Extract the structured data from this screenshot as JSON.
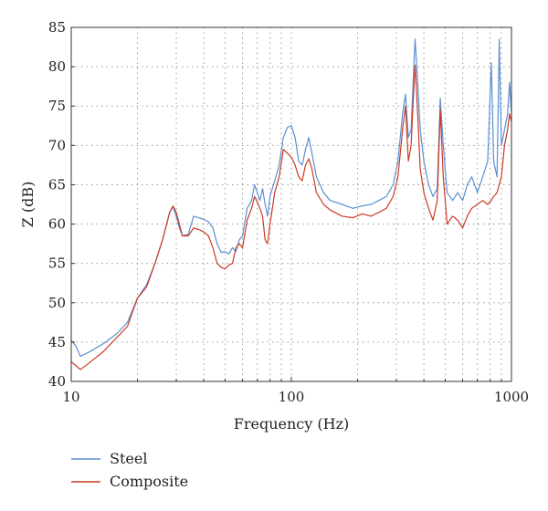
{
  "chart_data": {
    "type": "line",
    "title": "",
    "xlabel": "Frequency (Hz)",
    "ylabel": "Z (dB)",
    "xscale": "log",
    "xlim": [
      10,
      1000
    ],
    "ylim": [
      40,
      85
    ],
    "x_ticks": [
      10,
      100,
      1000
    ],
    "x_tick_labels": [
      "10",
      "100",
      "1000"
    ],
    "y_ticks": [
      40,
      45,
      50,
      55,
      60,
      65,
      70,
      75,
      80,
      85
    ],
    "y_tick_labels": [
      "40",
      "45",
      "50",
      "55",
      "60",
      "65",
      "70",
      "75",
      "80",
      "85"
    ],
    "grid": true,
    "legend_position": "bottom-left",
    "series": [
      {
        "name": "Steel",
        "color": "#5b8fd4",
        "points": [
          [
            10,
            45.2
          ],
          [
            10.5,
            44.5
          ],
          [
            11,
            43.2
          ],
          [
            12,
            43.7
          ],
          [
            14,
            44.8
          ],
          [
            16,
            46.0
          ],
          [
            18,
            47.5
          ],
          [
            20,
            50.6
          ],
          [
            22,
            52.3
          ],
          [
            24,
            55.0
          ],
          [
            26,
            58.0
          ],
          [
            28,
            61.5
          ],
          [
            29,
            62.2
          ],
          [
            30,
            61.0
          ],
          [
            31,
            59.5
          ],
          [
            32,
            58.5
          ],
          [
            34,
            58.7
          ],
          [
            36,
            61.0
          ],
          [
            38,
            60.8
          ],
          [
            40,
            60.6
          ],
          [
            42,
            60.3
          ],
          [
            44,
            59.5
          ],
          [
            46,
            57.5
          ],
          [
            48,
            56.4
          ],
          [
            50,
            56.5
          ],
          [
            52,
            56.2
          ],
          [
            54,
            57.0
          ],
          [
            56,
            56.5
          ],
          [
            58,
            58.0
          ],
          [
            60,
            58.5
          ],
          [
            63,
            62.0
          ],
          [
            66,
            63.0
          ],
          [
            68,
            65.0
          ],
          [
            70,
            64.0
          ],
          [
            72,
            63.0
          ],
          [
            74,
            64.5
          ],
          [
            76,
            62.5
          ],
          [
            78,
            61.0
          ],
          [
            80,
            63.5
          ],
          [
            84,
            65.5
          ],
          [
            88,
            67.5
          ],
          [
            92,
            71.0
          ],
          [
            96,
            72.3
          ],
          [
            100,
            72.5
          ],
          [
            104,
            71.0
          ],
          [
            108,
            68.0
          ],
          [
            112,
            67.5
          ],
          [
            116,
            69.5
          ],
          [
            120,
            71.0
          ],
          [
            124,
            69.0
          ],
          [
            130,
            66.0
          ],
          [
            140,
            64.0
          ],
          [
            150,
            63.0
          ],
          [
            170,
            62.5
          ],
          [
            190,
            62.0
          ],
          [
            210,
            62.3
          ],
          [
            230,
            62.5
          ],
          [
            250,
            63.0
          ],
          [
            270,
            63.5
          ],
          [
            290,
            65.0
          ],
          [
            305,
            68.0
          ],
          [
            320,
            74.0
          ],
          [
            330,
            76.5
          ],
          [
            340,
            71.0
          ],
          [
            350,
            72.0
          ],
          [
            358,
            78.5
          ],
          [
            365,
            83.5
          ],
          [
            375,
            78.0
          ],
          [
            385,
            72.0
          ],
          [
            400,
            68.0
          ],
          [
            420,
            65.0
          ],
          [
            440,
            63.5
          ],
          [
            460,
            64.5
          ],
          [
            475,
            76.0
          ],
          [
            490,
            70.0
          ],
          [
            510,
            64.0
          ],
          [
            540,
            63.0
          ],
          [
            570,
            64.0
          ],
          [
            600,
            63.0
          ],
          [
            630,
            65.0
          ],
          [
            660,
            66.0
          ],
          [
            700,
            64.0
          ],
          [
            740,
            66.0
          ],
          [
            780,
            68.0
          ],
          [
            810,
            80.5
          ],
          [
            830,
            68.0
          ],
          [
            860,
            66.0
          ],
          [
            880,
            83.5
          ],
          [
            900,
            70.0
          ],
          [
            930,
            72.0
          ],
          [
            960,
            74.0
          ],
          [
            980,
            78.0
          ],
          [
            1000,
            74.0
          ]
        ]
      },
      {
        "name": "Composite",
        "color": "#cc3a23",
        "points": [
          [
            10,
            42.5
          ],
          [
            10.5,
            42.0
          ],
          [
            11,
            41.5
          ],
          [
            12,
            42.3
          ],
          [
            14,
            43.8
          ],
          [
            16,
            45.5
          ],
          [
            18,
            47.0
          ],
          [
            20,
            50.6
          ],
          [
            22,
            52.0
          ],
          [
            24,
            55.0
          ],
          [
            26,
            58.0
          ],
          [
            28,
            61.5
          ],
          [
            29,
            62.3
          ],
          [
            30,
            61.5
          ],
          [
            31,
            60.0
          ],
          [
            32,
            58.5
          ],
          [
            34,
            58.5
          ],
          [
            36,
            59.5
          ],
          [
            38,
            59.3
          ],
          [
            40,
            59.0
          ],
          [
            42,
            58.5
          ],
          [
            44,
            57.0
          ],
          [
            46,
            55.0
          ],
          [
            48,
            54.5
          ],
          [
            50,
            54.3
          ],
          [
            52,
            54.8
          ],
          [
            54,
            55.0
          ],
          [
            56,
            57.0
          ],
          [
            58,
            57.5
          ],
          [
            60,
            57.0
          ],
          [
            63,
            60.5
          ],
          [
            66,
            62.0
          ],
          [
            68,
            63.5
          ],
          [
            70,
            62.8
          ],
          [
            72,
            62.0
          ],
          [
            74,
            61.0
          ],
          [
            76,
            58.0
          ],
          [
            78,
            57.5
          ],
          [
            80,
            60.0
          ],
          [
            84,
            64.0
          ],
          [
            88,
            66.0
          ],
          [
            92,
            69.5
          ],
          [
            96,
            69.0
          ],
          [
            100,
            68.5
          ],
          [
            104,
            67.5
          ],
          [
            108,
            66.0
          ],
          [
            112,
            65.5
          ],
          [
            116,
            67.5
          ],
          [
            120,
            68.3
          ],
          [
            124,
            67.0
          ],
          [
            130,
            64.0
          ],
          [
            140,
            62.5
          ],
          [
            150,
            61.8
          ],
          [
            170,
            61.0
          ],
          [
            190,
            60.8
          ],
          [
            210,
            61.3
          ],
          [
            230,
            61.0
          ],
          [
            250,
            61.5
          ],
          [
            270,
            62.0
          ],
          [
            290,
            63.5
          ],
          [
            305,
            66.0
          ],
          [
            320,
            72.0
          ],
          [
            330,
            75.0
          ],
          [
            340,
            68.0
          ],
          [
            350,
            70.0
          ],
          [
            358,
            76.0
          ],
          [
            365,
            80.2
          ],
          [
            375,
            74.0
          ],
          [
            385,
            67.0
          ],
          [
            400,
            64.0
          ],
          [
            420,
            62.0
          ],
          [
            440,
            60.5
          ],
          [
            460,
            63.0
          ],
          [
            475,
            74.5
          ],
          [
            490,
            66.0
          ],
          [
            510,
            60.0
          ],
          [
            540,
            61.0
          ],
          [
            570,
            60.5
          ],
          [
            600,
            59.5
          ],
          [
            630,
            61.0
          ],
          [
            660,
            62.0
          ],
          [
            700,
            62.5
          ],
          [
            740,
            63.0
          ],
          [
            780,
            62.5
          ],
          [
            810,
            63.0
          ],
          [
            830,
            63.5
          ],
          [
            860,
            64.0
          ],
          [
            880,
            65.0
          ],
          [
            900,
            66.0
          ],
          [
            930,
            70.0
          ],
          [
            960,
            72.0
          ],
          [
            980,
            74.0
          ],
          [
            1000,
            73.0
          ]
        ]
      }
    ]
  }
}
